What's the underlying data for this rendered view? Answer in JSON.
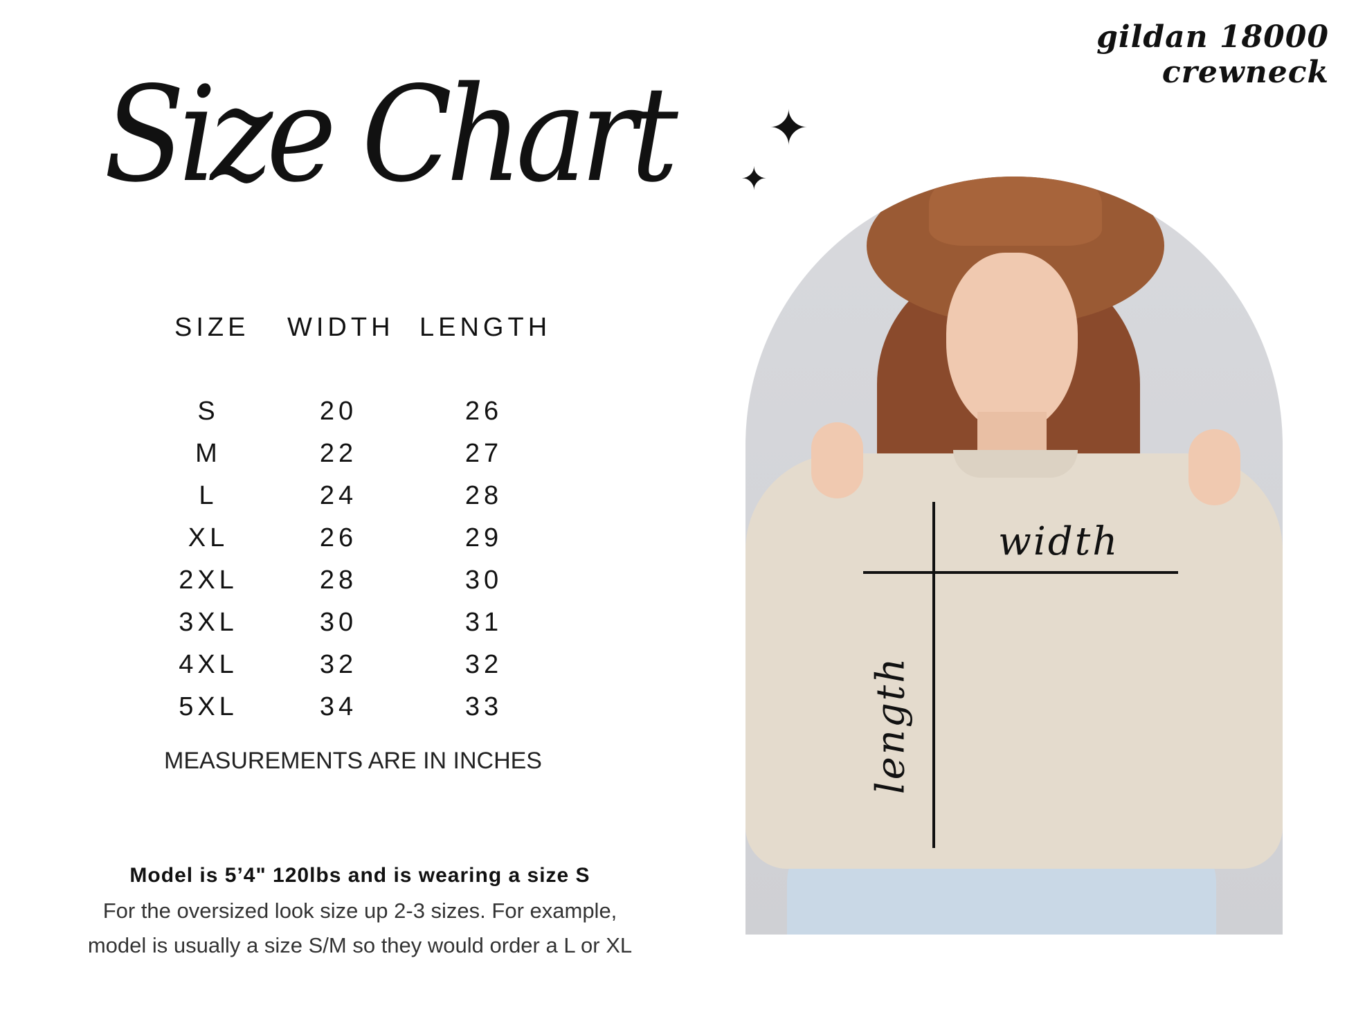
{
  "brand": "gildan 18000 crewneck",
  "title": "Size Chart",
  "table": {
    "headers": [
      "SIZE",
      "WIDTH",
      "LENGTH"
    ],
    "rows": [
      [
        "S",
        "20",
        "26"
      ],
      [
        "M",
        "22",
        "27"
      ],
      [
        "L",
        "24",
        "28"
      ],
      [
        "XL",
        "26",
        "29"
      ],
      [
        "2XL",
        "28",
        "30"
      ],
      [
        "3XL",
        "30",
        "31"
      ],
      [
        "4XL",
        "32",
        "32"
      ],
      [
        "5XL",
        "34",
        "33"
      ]
    ]
  },
  "units_note": "MEASUREMENTS ARE IN INCHES",
  "model_info": {
    "line1": "Model is 5’4\" 120lbs and is wearing a size S",
    "line2": "For the oversized look size up 2-3 sizes. For example,",
    "line3": "model is usually a size S/M so they would order a L or XL"
  },
  "photo": {
    "width_label": "width",
    "length_label": "length",
    "colors": {
      "hat": "#9a5a34",
      "sweater": "#e4dbcd",
      "hair": "#8a4a2c",
      "jeans": "#c9d8e6",
      "background": "#d8d9dd"
    }
  }
}
